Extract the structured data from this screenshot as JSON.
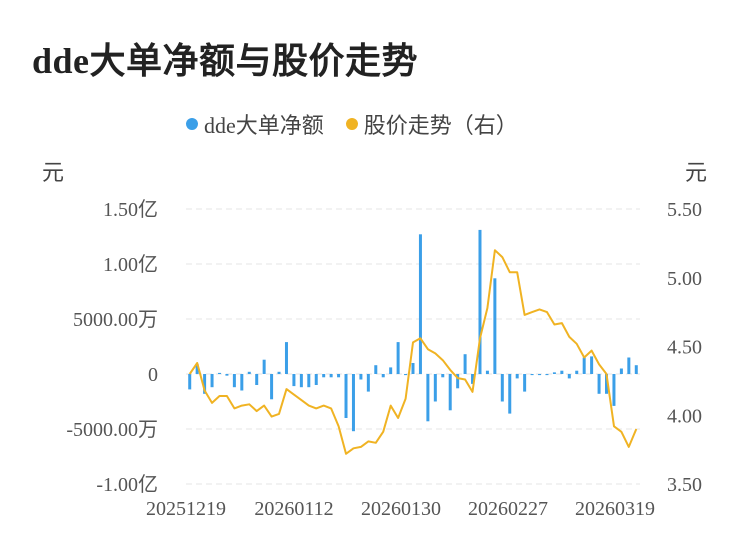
{
  "title": "dde大单净额与股价走势",
  "legend": [
    {
      "label": "dde大单净额",
      "color": "#3b9fe8"
    },
    {
      "label": "股价走势（右）",
      "color": "#f0b323"
    }
  ],
  "units": {
    "left": "元",
    "right": "元"
  },
  "chart_data": {
    "type": "bar+line",
    "x_tick_labels": [
      "20251219",
      "20260112",
      "20260130",
      "20260227",
      "20260319"
    ],
    "y_left_ticks": [
      "1.50亿",
      "1.00亿",
      "5000.00万",
      "0",
      "-5000.00万",
      "-1.00亿"
    ],
    "y_left_range": [
      -100000000,
      150000000
    ],
    "y_right_ticks": [
      "5.50",
      "5.00",
      "4.50",
      "4.00",
      "3.50"
    ],
    "y_right_range": [
      3.5,
      5.5
    ],
    "grid": true,
    "legend_position": "top",
    "series": [
      {
        "name": "dde大单净额",
        "type": "bar",
        "color": "#3b9fe8",
        "values": [
          -14000000,
          9000000,
          -18000000,
          -12000000,
          1000000,
          -1500000,
          -12000000,
          -15000000,
          2000000,
          -10000000,
          13000000,
          -23000000,
          2000000,
          29000000,
          -11000000,
          -12000000,
          -12000000,
          -10000000,
          -3000000,
          -3000000,
          -3000000,
          -40000000,
          -52000000,
          -5000000,
          -16000000,
          8000000,
          -3000000,
          6000000,
          29000000,
          -1000000,
          10000000,
          127000000,
          -43000000,
          -25000000,
          -3000000,
          -33000000,
          -13000000,
          18000000,
          -9000000,
          131000000,
          3000000,
          87000000,
          -25000000,
          -36000000,
          -4000000,
          -16000000,
          -1000000,
          -1000000,
          -1000000,
          1500000,
          3000000,
          -4000000,
          3000000,
          15000000,
          16000000,
          -18000000,
          -18000000,
          -29000000,
          5000000,
          15000000,
          8000000
        ]
      },
      {
        "name": "股价走势（右）",
        "type": "line",
        "color": "#f0b323",
        "values": [
          4.3,
          4.38,
          4.18,
          4.09,
          4.14,
          4.14,
          4.05,
          4.07,
          4.08,
          4.03,
          4.07,
          3.99,
          4.01,
          4.19,
          4.15,
          4.11,
          4.07,
          4.05,
          4.07,
          4.05,
          3.92,
          3.72,
          3.76,
          3.77,
          3.81,
          3.8,
          3.88,
          4.07,
          3.98,
          4.12,
          4.53,
          4.56,
          4.48,
          4.45,
          4.4,
          4.33,
          4.27,
          4.26,
          4.17,
          4.56,
          4.78,
          5.2,
          5.15,
          5.04,
          5.04,
          4.73,
          4.75,
          4.77,
          4.75,
          4.66,
          4.67,
          4.57,
          4.52,
          4.42,
          4.47,
          4.37,
          4.3,
          3.92,
          3.88,
          3.77,
          3.9
        ]
      }
    ]
  }
}
